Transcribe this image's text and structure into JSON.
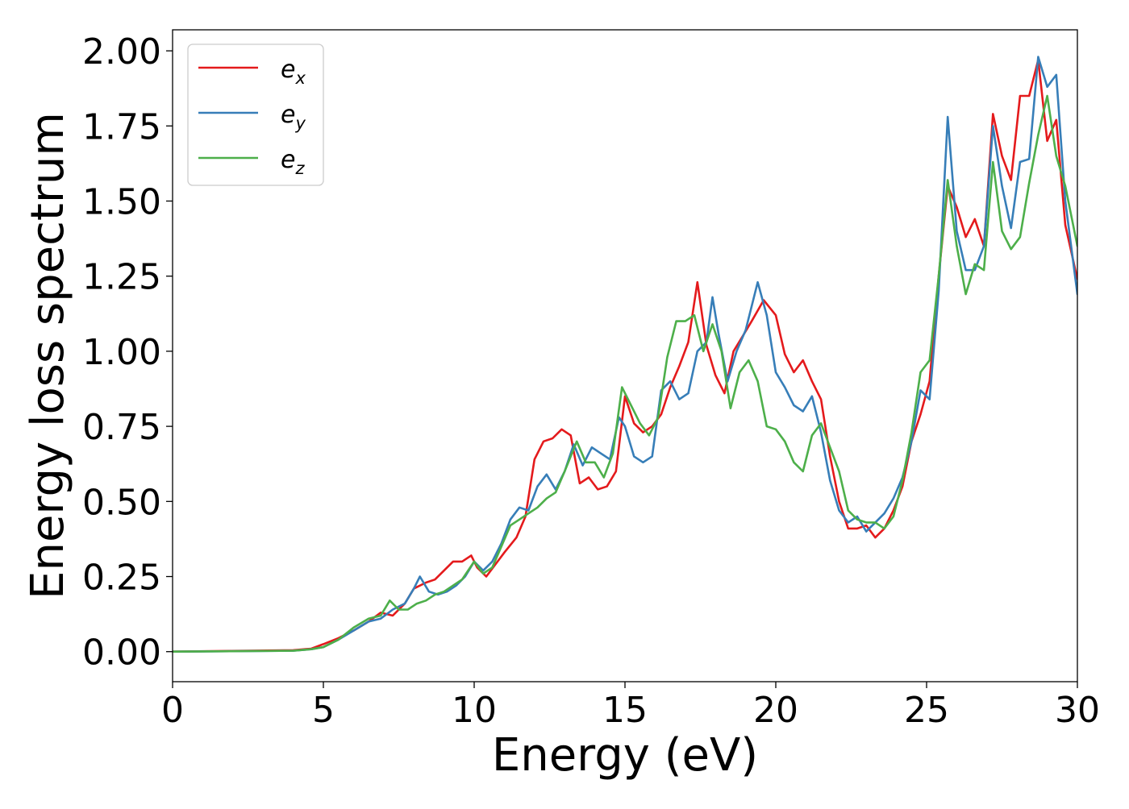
{
  "chart_data": {
    "type": "line",
    "title": "",
    "xlabel": "Energy (eV)",
    "ylabel": "Energy loss spectrum",
    "xlim": [
      0,
      30
    ],
    "ylim": [
      -0.1,
      2.07
    ],
    "xticks": [
      0,
      5,
      10,
      15,
      20,
      25,
      30
    ],
    "xtick_labels": [
      "0",
      "5",
      "10",
      "15",
      "20",
      "25",
      "30"
    ],
    "yticks": [
      0,
      0.25,
      0.5,
      0.75,
      1.0,
      1.25,
      1.5,
      1.75,
      2.0
    ],
    "ytick_labels": [
      "0.00",
      "0.25",
      "0.50",
      "0.75",
      "1.00",
      "1.25",
      "1.50",
      "1.75",
      "2.00"
    ],
    "grid": false,
    "legend_position": "top-left",
    "series": [
      {
        "name": "e_x",
        "label_base": "e",
        "label_sub": "x",
        "color": "#e41a1c",
        "x": [
          0,
          4,
          4.6,
          5.0,
          5.5,
          6.0,
          6.5,
          6.9,
          7.3,
          7.7,
          8.0,
          8.4,
          8.7,
          9.0,
          9.3,
          9.6,
          9.9,
          10.1,
          10.4,
          10.7,
          11.0,
          11.4,
          11.7,
          12.0,
          12.3,
          12.6,
          12.9,
          13.2,
          13.5,
          13.8,
          14.1,
          14.4,
          14.7,
          15.0,
          15.3,
          15.6,
          15.9,
          16.2,
          16.5,
          16.8,
          17.1,
          17.4,
          17.7,
          18.0,
          18.3,
          18.6,
          18.9,
          19.2,
          19.6,
          20.0,
          20.3,
          20.6,
          20.9,
          21.2,
          21.5,
          21.8,
          22.1,
          22.4,
          22.7,
          23.0,
          23.3,
          23.6,
          23.9,
          24.2,
          24.5,
          24.8,
          25.1,
          25.4,
          25.7,
          26.0,
          26.3,
          26.6,
          26.9,
          27.2,
          27.5,
          27.8,
          28.1,
          28.4,
          28.7,
          29.0,
          29.3,
          29.6,
          30.0
        ],
        "y": [
          0,
          0.005,
          0.01,
          0.025,
          0.045,
          0.07,
          0.1,
          0.13,
          0.12,
          0.16,
          0.21,
          0.23,
          0.24,
          0.27,
          0.3,
          0.3,
          0.32,
          0.28,
          0.25,
          0.29,
          0.33,
          0.38,
          0.45,
          0.64,
          0.7,
          0.71,
          0.74,
          0.72,
          0.56,
          0.58,
          0.54,
          0.55,
          0.6,
          0.85,
          0.76,
          0.73,
          0.75,
          0.79,
          0.88,
          0.95,
          1.03,
          1.23,
          1.02,
          0.92,
          0.86,
          1.0,
          1.05,
          1.1,
          1.17,
          1.12,
          0.99,
          0.93,
          0.97,
          0.9,
          0.84,
          0.65,
          0.5,
          0.41,
          0.41,
          0.42,
          0.38,
          0.41,
          0.47,
          0.55,
          0.7,
          0.79,
          0.9,
          1.25,
          1.55,
          1.48,
          1.38,
          1.44,
          1.35,
          1.79,
          1.65,
          1.57,
          1.85,
          1.85,
          1.97,
          1.7,
          1.77,
          1.42,
          1.24
        ]
      },
      {
        "name": "e_y",
        "label_base": "e",
        "label_sub": "y",
        "color": "#377eb8",
        "x": [
          0,
          4,
          4.6,
          5.0,
          5.5,
          6.0,
          6.5,
          6.9,
          7.3,
          7.7,
          8.0,
          8.2,
          8.5,
          8.8,
          9.1,
          9.4,
          9.7,
          10.0,
          10.3,
          10.6,
          10.9,
          11.2,
          11.5,
          11.8,
          12.1,
          12.4,
          12.7,
          13.0,
          13.3,
          13.6,
          13.9,
          14.2,
          14.5,
          14.8,
          15.0,
          15.3,
          15.6,
          15.9,
          16.2,
          16.5,
          16.8,
          17.1,
          17.4,
          17.7,
          17.9,
          18.1,
          18.4,
          18.7,
          19.0,
          19.4,
          19.7,
          20.0,
          20.3,
          20.6,
          20.9,
          21.2,
          21.5,
          21.8,
          22.1,
          22.4,
          22.7,
          23.0,
          23.3,
          23.6,
          23.9,
          24.2,
          24.5,
          24.8,
          25.1,
          25.4,
          25.7,
          26.0,
          26.3,
          26.6,
          26.9,
          27.2,
          27.5,
          27.8,
          28.1,
          28.4,
          28.7,
          29.0,
          29.3,
          29.6,
          30.0
        ],
        "y": [
          0,
          0.003,
          0.008,
          0.015,
          0.04,
          0.07,
          0.1,
          0.11,
          0.14,
          0.16,
          0.21,
          0.25,
          0.2,
          0.19,
          0.2,
          0.22,
          0.25,
          0.3,
          0.27,
          0.3,
          0.36,
          0.44,
          0.48,
          0.47,
          0.55,
          0.59,
          0.54,
          0.6,
          0.69,
          0.62,
          0.68,
          0.66,
          0.64,
          0.78,
          0.75,
          0.65,
          0.63,
          0.65,
          0.87,
          0.9,
          0.84,
          0.86,
          1.0,
          1.03,
          1.18,
          1.06,
          0.9,
          1.0,
          1.07,
          1.23,
          1.12,
          0.93,
          0.88,
          0.82,
          0.8,
          0.85,
          0.73,
          0.57,
          0.47,
          0.43,
          0.45,
          0.4,
          0.43,
          0.46,
          0.51,
          0.58,
          0.7,
          0.87,
          0.84,
          1.2,
          1.78,
          1.4,
          1.27,
          1.27,
          1.35,
          1.75,
          1.55,
          1.41,
          1.63,
          1.64,
          1.98,
          1.88,
          1.92,
          1.5,
          1.19
        ]
      },
      {
        "name": "e_z",
        "label_base": "e",
        "label_sub": "z",
        "color": "#4daf4a",
        "x": [
          0,
          4,
          4.6,
          5.0,
          5.5,
          6.0,
          6.5,
          6.9,
          7.2,
          7.5,
          7.8,
          8.1,
          8.4,
          8.7,
          9.0,
          9.3,
          9.6,
          10.0,
          10.3,
          10.6,
          10.9,
          11.2,
          11.5,
          11.8,
          12.1,
          12.4,
          12.7,
          13.0,
          13.4,
          13.7,
          14.0,
          14.3,
          14.6,
          14.9,
          15.2,
          15.5,
          15.8,
          16.1,
          16.4,
          16.7,
          17.0,
          17.3,
          17.6,
          17.9,
          18.2,
          18.5,
          18.8,
          19.1,
          19.4,
          19.7,
          20.0,
          20.3,
          20.6,
          20.9,
          21.2,
          21.5,
          21.8,
          22.1,
          22.4,
          22.7,
          23.0,
          23.3,
          23.6,
          23.9,
          24.2,
          24.5,
          24.8,
          25.1,
          25.4,
          25.7,
          26.0,
          26.3,
          26.6,
          26.9,
          27.2,
          27.5,
          27.8,
          28.1,
          28.4,
          28.7,
          29.0,
          29.3,
          29.6,
          30.0
        ],
        "y": [
          0,
          0.003,
          0.008,
          0.015,
          0.04,
          0.08,
          0.11,
          0.12,
          0.17,
          0.14,
          0.14,
          0.16,
          0.17,
          0.19,
          0.2,
          0.22,
          0.24,
          0.3,
          0.26,
          0.28,
          0.35,
          0.42,
          0.44,
          0.46,
          0.48,
          0.51,
          0.53,
          0.6,
          0.7,
          0.63,
          0.63,
          0.58,
          0.66,
          0.88,
          0.82,
          0.76,
          0.72,
          0.78,
          0.98,
          1.1,
          1.1,
          1.12,
          1.0,
          1.09,
          1.0,
          0.81,
          0.93,
          0.97,
          0.9,
          0.75,
          0.74,
          0.7,
          0.63,
          0.6,
          0.72,
          0.76,
          0.68,
          0.6,
          0.47,
          0.44,
          0.43,
          0.43,
          0.41,
          0.45,
          0.57,
          0.73,
          0.93,
          0.97,
          1.25,
          1.57,
          1.35,
          1.19,
          1.29,
          1.27,
          1.63,
          1.4,
          1.34,
          1.38,
          1.56,
          1.72,
          1.85,
          1.65,
          1.55,
          1.35
        ]
      }
    ]
  }
}
